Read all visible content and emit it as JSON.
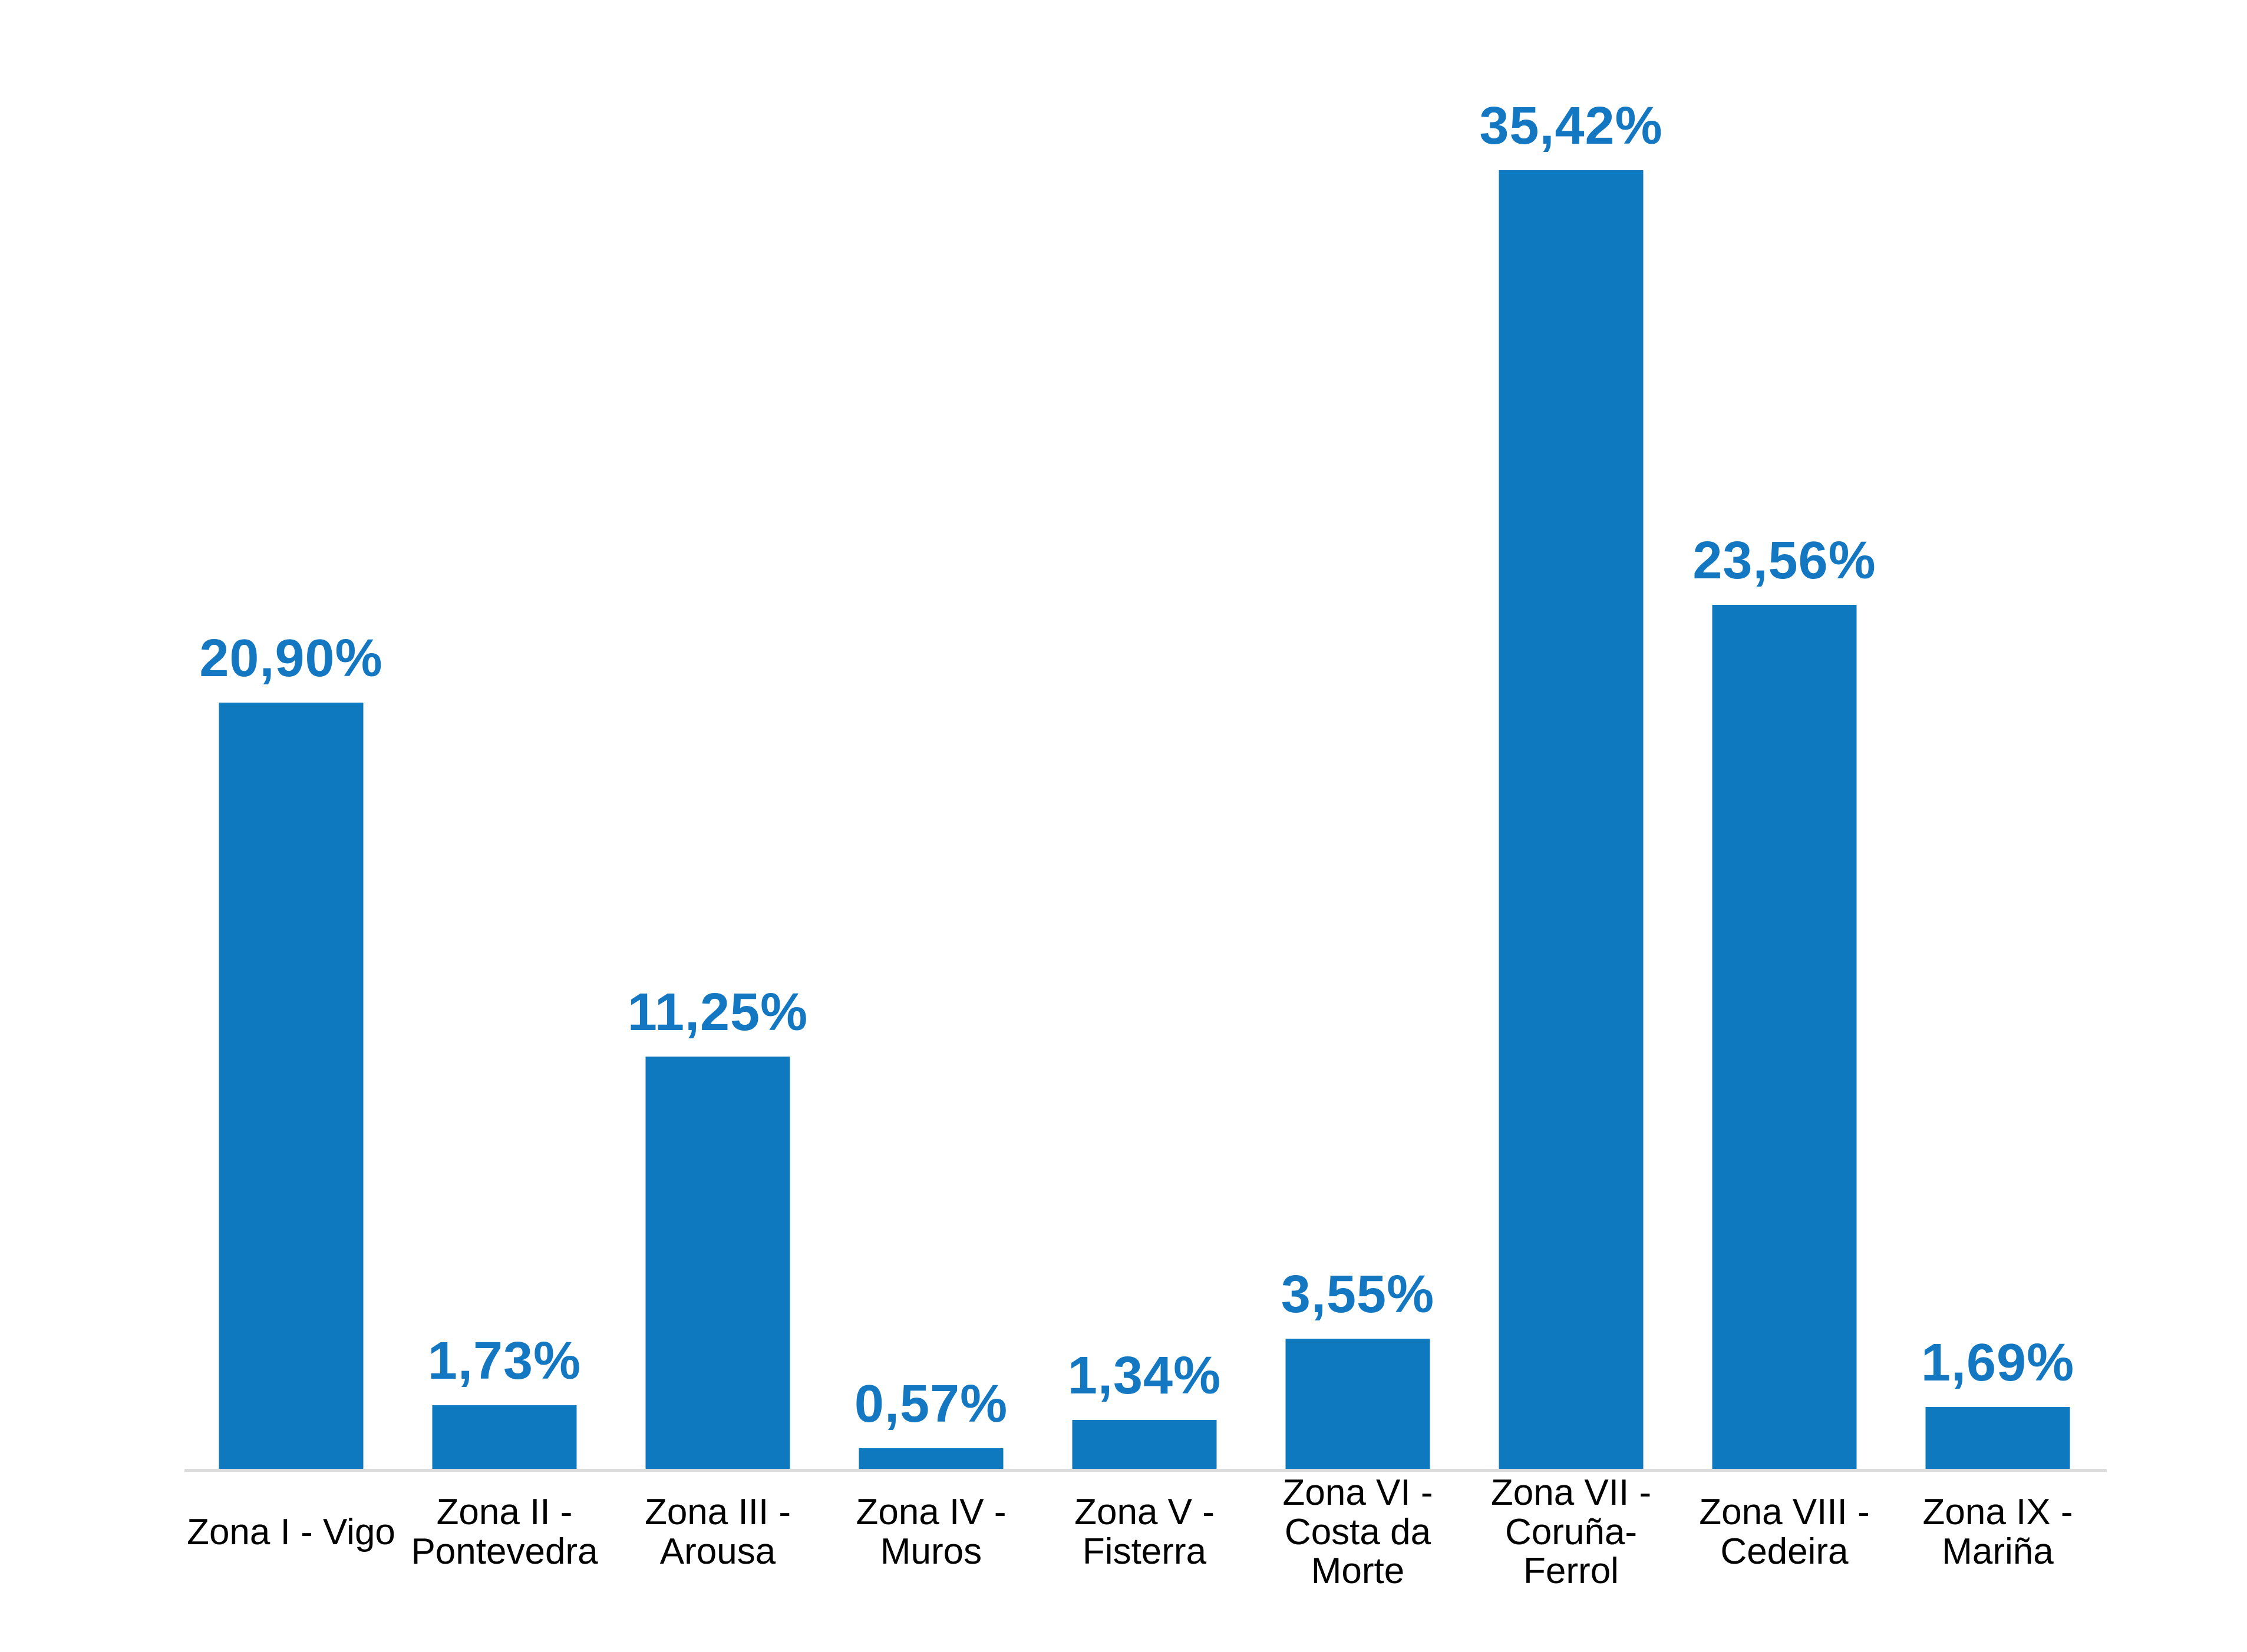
{
  "chart_data": {
    "type": "bar",
    "title": "",
    "xlabel": "",
    "ylabel": "",
    "grid": false,
    "legend": false,
    "ylim": [
      0,
      37
    ],
    "categories": [
      "Zona I - Vigo",
      "Zona II - Pontevedra",
      "Zona III - Arousa",
      "Zona IV - Muros",
      "Zona V - Fisterra",
      "Zona VI - Costa da Morte",
      "Zona VII - Coruña-Ferrol",
      "Zona VIII - Cedeira",
      "Zona IX - Mariña"
    ],
    "category_lines": [
      [
        "Zona I - Vigo"
      ],
      [
        "Zona II -",
        "Pontevedra"
      ],
      [
        "Zona III -",
        "Arousa"
      ],
      [
        "Zona IV -",
        "Muros"
      ],
      [
        "Zona V -",
        "Fisterra"
      ],
      [
        "Zona VI -",
        "Costa da",
        "Morte"
      ],
      [
        "Zona VII -",
        "Coruña-",
        "Ferrol"
      ],
      [
        "Zona VIII -",
        "Cedeira"
      ],
      [
        "Zona IX -",
        "Mariña"
      ]
    ],
    "values": [
      20.9,
      1.73,
      11.25,
      0.57,
      1.34,
      3.55,
      35.42,
      23.56,
      1.69
    ],
    "value_labels": [
      "20,90%",
      "1,73%",
      "11,25%",
      "0,57%",
      "1,34%",
      "3,55%",
      "35,42%",
      "23,56%",
      "1,69%"
    ],
    "colors": {
      "bar": "#0e79bf",
      "value_label": "#1377c2",
      "category_label": "#000000",
      "axis_line": "#dcdcdc",
      "background": "#ffffff"
    }
  }
}
